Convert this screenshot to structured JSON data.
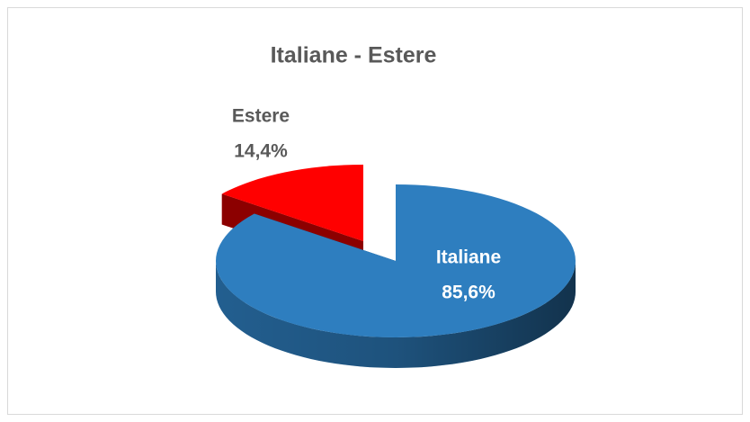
{
  "chart_data": {
    "type": "pie3d",
    "title": "Italiane - Estere",
    "categories": [
      "Italiane",
      "Estere"
    ],
    "values": [
      85.6,
      14.4
    ],
    "value_labels": [
      "85,6%",
      "14,4%"
    ],
    "colors": [
      "#2e7ebf",
      "#ff0000"
    ]
  }
}
